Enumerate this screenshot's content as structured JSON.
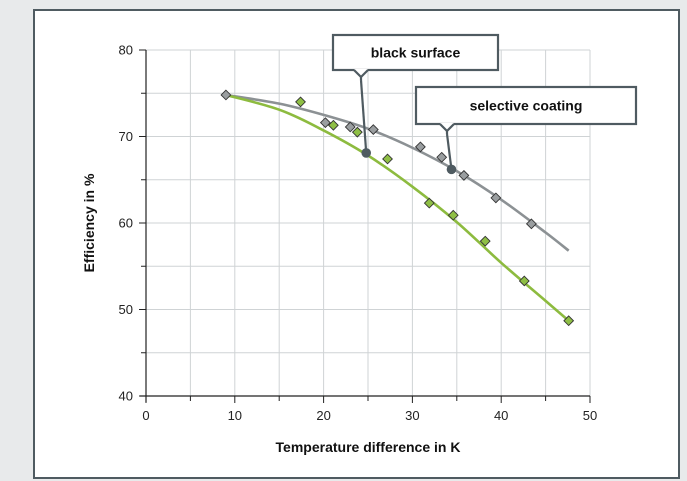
{
  "chart_data": {
    "type": "scatter",
    "xlabel": "Temperature difference in K",
    "ylabel": "Efficiency in %",
    "xlim": [
      0,
      50
    ],
    "ylim": [
      40,
      80
    ],
    "xticks": [
      0,
      10,
      20,
      30,
      40,
      50
    ],
    "yticks": [
      40,
      50,
      60,
      70,
      80
    ],
    "grid": true,
    "series": [
      {
        "name": "selective coating",
        "color": "#8c9194",
        "marker_color": "#9a9ea0",
        "points": [
          {
            "x": 9.0,
            "y": 74.8
          },
          {
            "x": 20.2,
            "y": 71.6
          },
          {
            "x": 23.0,
            "y": 71.1
          },
          {
            "x": 25.6,
            "y": 70.8
          },
          {
            "x": 30.9,
            "y": 68.8
          },
          {
            "x": 33.3,
            "y": 67.6
          },
          {
            "x": 35.8,
            "y": 65.5
          },
          {
            "x": 39.4,
            "y": 62.9
          },
          {
            "x": 43.4,
            "y": 59.9
          }
        ],
        "curve": [
          {
            "x": 9.0,
            "y": 74.8
          },
          {
            "x": 15.0,
            "y": 73.8
          },
          {
            "x": 20.0,
            "y": 72.5
          },
          {
            "x": 25.0,
            "y": 70.9
          },
          {
            "x": 30.0,
            "y": 68.7
          },
          {
            "x": 35.0,
            "y": 66.0
          },
          {
            "x": 40.0,
            "y": 62.7
          },
          {
            "x": 45.0,
            "y": 58.9
          },
          {
            "x": 47.6,
            "y": 56.8
          }
        ],
        "callout_point": {
          "x": 34.4,
          "y": 66.2
        }
      },
      {
        "name": "black surface",
        "color": "#8dbb3f",
        "marker_color": "#8fbf45",
        "points": [
          {
            "x": 17.4,
            "y": 74.0
          },
          {
            "x": 21.1,
            "y": 71.3
          },
          {
            "x": 23.8,
            "y": 70.5
          },
          {
            "x": 27.2,
            "y": 67.4
          },
          {
            "x": 31.9,
            "y": 62.3
          },
          {
            "x": 34.6,
            "y": 60.9
          },
          {
            "x": 38.2,
            "y": 57.9
          },
          {
            "x": 42.6,
            "y": 53.3
          },
          {
            "x": 47.6,
            "y": 48.7
          }
        ],
        "curve": [
          {
            "x": 9.0,
            "y": 74.8
          },
          {
            "x": 15.0,
            "y": 73.1
          },
          {
            "x": 20.0,
            "y": 70.7
          },
          {
            "x": 25.0,
            "y": 67.8
          },
          {
            "x": 30.0,
            "y": 64.2
          },
          {
            "x": 35.0,
            "y": 60.1
          },
          {
            "x": 40.0,
            "y": 55.4
          },
          {
            "x": 45.0,
            "y": 51.0
          },
          {
            "x": 47.6,
            "y": 48.7
          }
        ],
        "callout_point": {
          "x": 24.8,
          "y": 68.1
        }
      }
    ]
  }
}
